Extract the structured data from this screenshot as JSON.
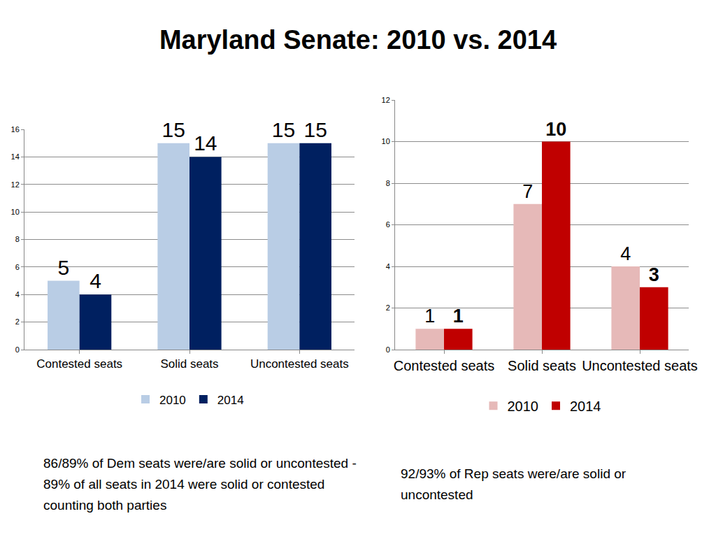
{
  "title": "Maryland Senate: 2010 vs. 2014",
  "notes": [
    "86/89% of Dem seats were/are solid or uncontested  - 89% of all seats in 2014 were solid or contested counting both parties",
    "92/93% of Rep seats were/are solid or uncontested"
  ],
  "chart_data": [
    {
      "type": "bar",
      "categories": [
        "Contested seats",
        "Solid seats",
        "Uncontested seats"
      ],
      "series": [
        {
          "name": "2010",
          "color": "#b9cde5",
          "values": [
            5,
            15,
            15
          ]
        },
        {
          "name": "2014",
          "color": "#002060",
          "values": [
            4,
            14,
            15
          ]
        }
      ],
      "ylim": [
        0,
        16
      ],
      "yticks": [
        0,
        2,
        4,
        6,
        8,
        10,
        12,
        14,
        16
      ],
      "grid": true,
      "legend": "bottom",
      "data_labels": true
    },
    {
      "type": "bar",
      "categories": [
        "Contested seats",
        "Solid seats",
        "Uncontested seats"
      ],
      "series": [
        {
          "name": "2010",
          "color": "#e6b9b8",
          "values": [
            1,
            7,
            4
          ]
        },
        {
          "name": "2014",
          "color": "#c00000",
          "values": [
            1,
            10,
            3
          ]
        }
      ],
      "ylim": [
        0,
        12
      ],
      "yticks": [
        0,
        2,
        4,
        6,
        8,
        10,
        12
      ],
      "grid": true,
      "legend": "bottom",
      "data_labels": true
    }
  ]
}
